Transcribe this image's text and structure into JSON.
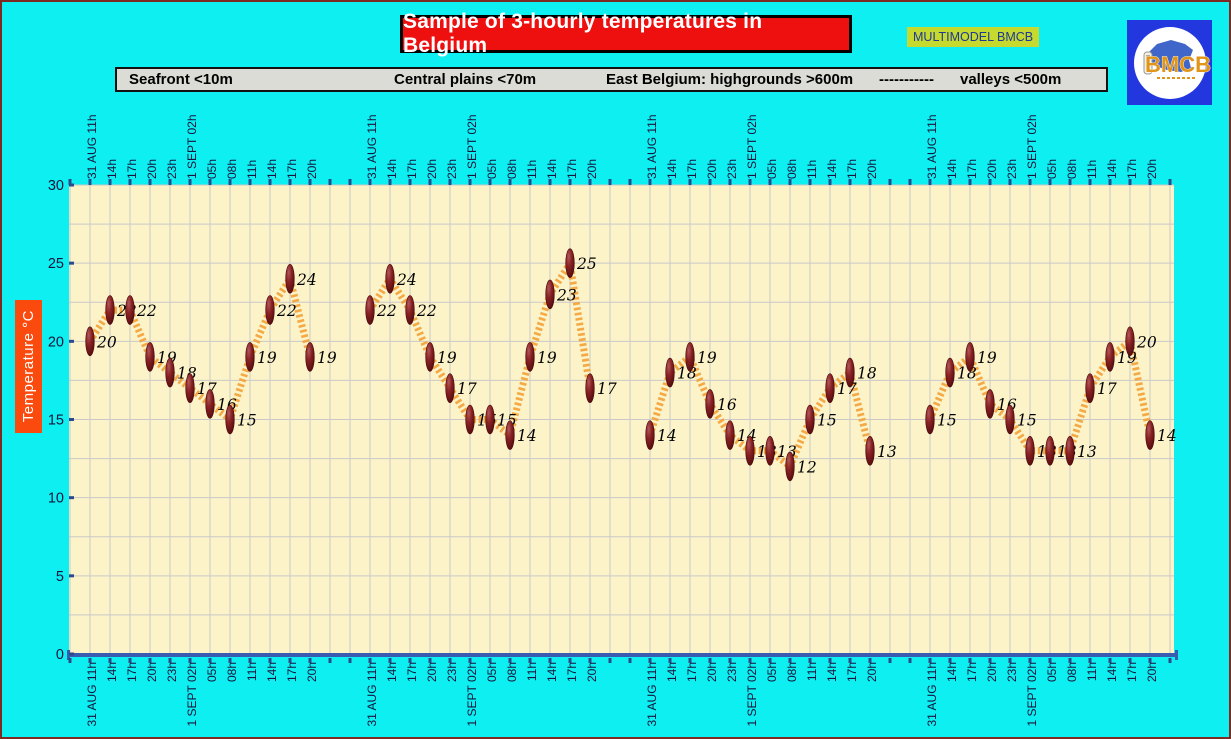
{
  "title": {
    "text": "Sample of 3-hourly temperatures in Belgium"
  },
  "model_badge": {
    "text": "MULTIMODEL BMCB"
  },
  "logo": {
    "text": "BMCB"
  },
  "regions_bar": {
    "items": [
      "Seafront <10m",
      "Central plains <70m",
      "East Belgium: highgrounds >600m",
      "-----------",
      "valleys <500m"
    ]
  },
  "y_axis": {
    "label": "Temperature  °C",
    "ticks": [
      0,
      5,
      10,
      15,
      20,
      25,
      30
    ]
  },
  "chart_data": {
    "type": "line",
    "title": "Sample of 3-hourly temperatures in Belgium",
    "ylabel": "Temperature °C",
    "ylim": [
      0,
      30
    ],
    "y_grid_step": 2.5,
    "x_step_hours": 3,
    "categories": [
      "31 AUG 11h",
      "14h",
      "17h",
      "20h",
      "23h",
      "1 SEPT 02h",
      "05h",
      "08h",
      "11h",
      "14h",
      "17h",
      "20h"
    ],
    "series": [
      {
        "name": "Seafront <10m",
        "values": [
          20,
          22,
          22,
          19,
          18,
          17,
          16,
          15,
          19,
          22,
          24,
          19
        ]
      },
      {
        "name": "Central plains <70m",
        "values": [
          22,
          24,
          22,
          19,
          17,
          15,
          15,
          14,
          19,
          23,
          25,
          17
        ]
      },
      {
        "name": "East Belgium: highgrounds >600m",
        "values": [
          14,
          18,
          19,
          16,
          14,
          13,
          13,
          12,
          15,
          17,
          18,
          13
        ]
      },
      {
        "name": "valleys <500m",
        "values": [
          15,
          18,
          19,
          16,
          15,
          13,
          13,
          13,
          17,
          19,
          20,
          14
        ]
      }
    ],
    "legend_position": "top-bar",
    "grid": true,
    "colors": {
      "plot_bg": "#fcf3c8",
      "grid": "#c9c9c9",
      "axis_line": "#3a5cb0",
      "tick": "#2a4a8c",
      "tick_label": "#14143c",
      "line": "#f3a33a",
      "marker": "#6e1114",
      "value_label": "#000000"
    }
  }
}
